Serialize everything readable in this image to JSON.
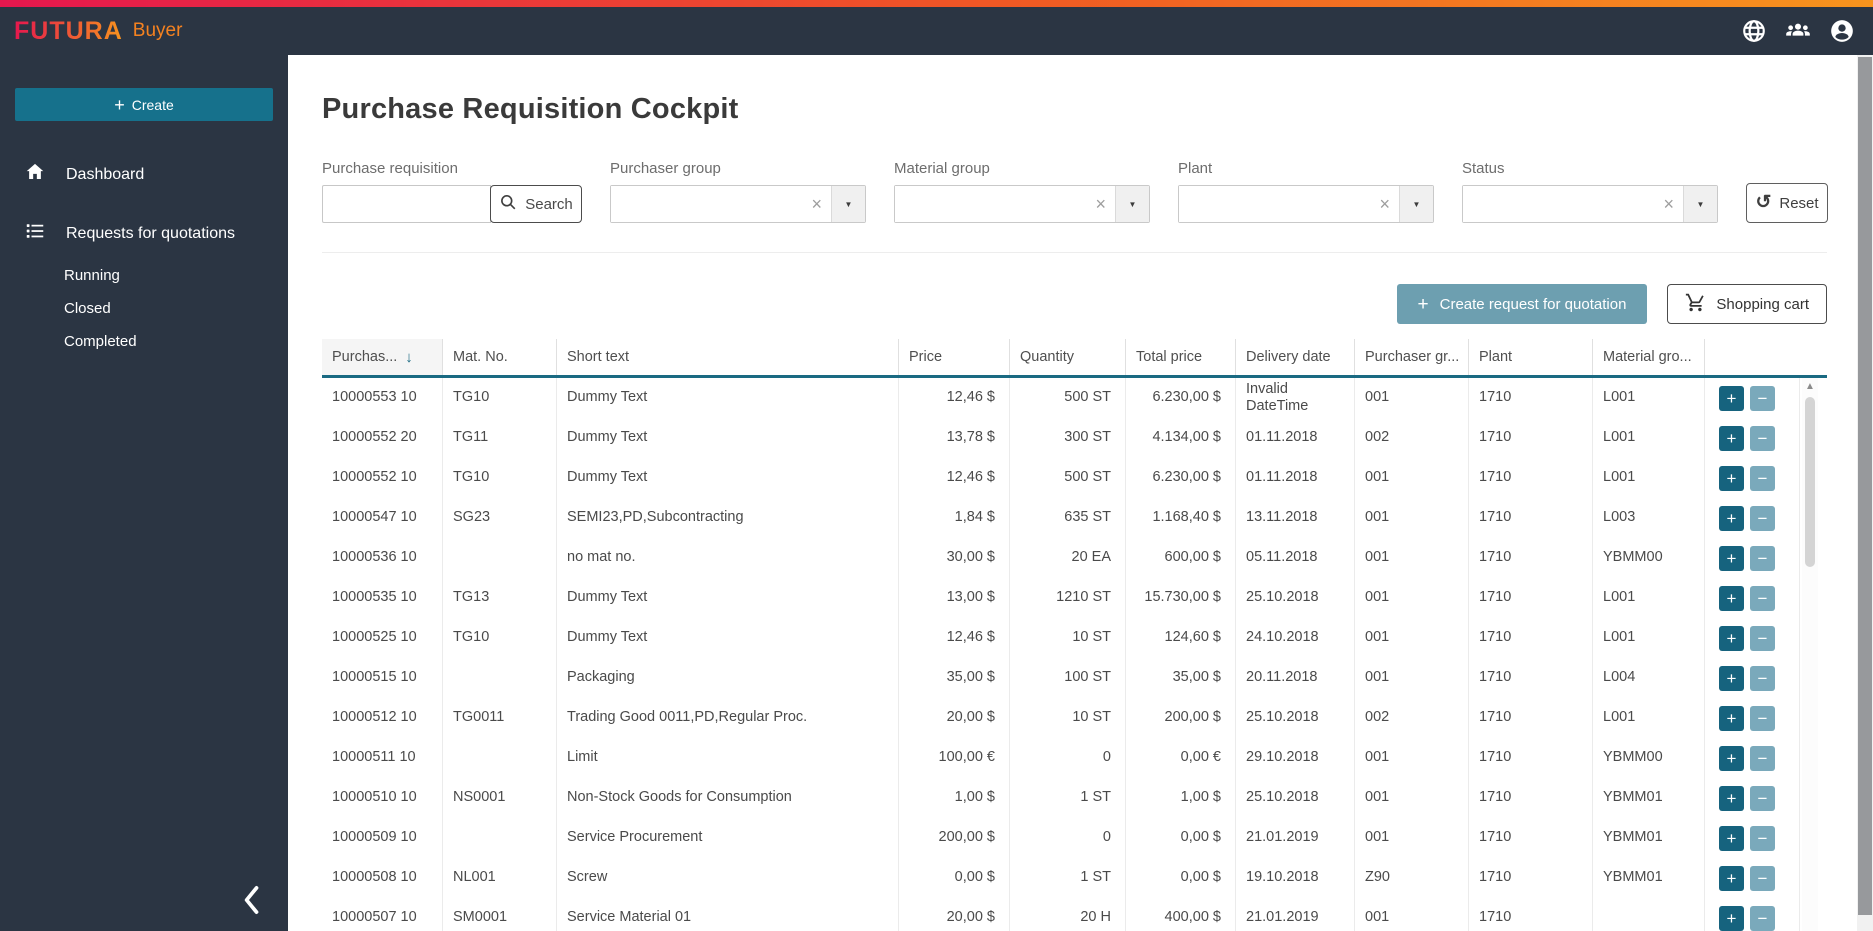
{
  "topbar": {
    "brand": "FUTURA",
    "product": "Buyer"
  },
  "sidebar": {
    "create_label": "Create",
    "dashboard_label": "Dashboard",
    "rfq_label": "Requests for quotations",
    "rfq_subitems": [
      "Running",
      "Closed",
      "Completed"
    ]
  },
  "page": {
    "title": "Purchase Requisition Cockpit"
  },
  "filters": {
    "search": {
      "label": "Purchase requisition",
      "value": "",
      "button": "Search"
    },
    "combos": [
      {
        "label": "Purchaser group",
        "value": ""
      },
      {
        "label": "Material group",
        "value": ""
      },
      {
        "label": "Plant",
        "value": ""
      },
      {
        "label": "Status",
        "value": ""
      }
    ],
    "reset_label": "Reset"
  },
  "actions": {
    "create_rfq": "Create request for quotation",
    "shopping_cart": "Shopping cart"
  },
  "glyphs": {
    "plus": "+",
    "minus": "−",
    "clear": "×",
    "caret": "▼",
    "up": "▲",
    "sort_desc": "↓",
    "reset": "↺"
  },
  "colors": {
    "brand_gradient_start": "#e5174e",
    "brand_gradient_end": "#f7941e",
    "header_bg": "#2b3543",
    "create_button": "#16718c",
    "rfq_button": "#6d9fb0",
    "plus_button": "#16637e",
    "minus_button": "#7aa9bb",
    "table_header_line": "#1a6a82"
  },
  "table": {
    "columns": [
      {
        "label": "Purchas...",
        "sorted": "desc"
      },
      {
        "label": "Mat. No."
      },
      {
        "label": "Short text"
      },
      {
        "label": "Price",
        "align": "right"
      },
      {
        "label": "Quantity",
        "align": "right"
      },
      {
        "label": "Total price",
        "align": "right"
      },
      {
        "label": "Delivery date"
      },
      {
        "label": "Purchaser gr..."
      },
      {
        "label": "Plant"
      },
      {
        "label": "Material gro..."
      }
    ],
    "rows": [
      {
        "purchase": "10000553 10",
        "mat": "TG10",
        "short_text": "Dummy Text",
        "price": "12,46 $",
        "quantity": "500 ST",
        "total": "6.230,00 $",
        "delivery": "Invalid DateTime",
        "purchaser_group": "001",
        "plant": "1710",
        "material_group": "L001"
      },
      {
        "purchase": "10000552 20",
        "mat": "TG11",
        "short_text": "Dummy Text",
        "price": "13,78 $",
        "quantity": "300 ST",
        "total": "4.134,00 $",
        "delivery": "01.11.2018",
        "purchaser_group": "002",
        "plant": "1710",
        "material_group": "L001"
      },
      {
        "purchase": "10000552 10",
        "mat": "TG10",
        "short_text": "Dummy Text",
        "price": "12,46 $",
        "quantity": "500 ST",
        "total": "6.230,00 $",
        "delivery": "01.11.2018",
        "purchaser_group": "001",
        "plant": "1710",
        "material_group": "L001"
      },
      {
        "purchase": "10000547 10",
        "mat": "SG23",
        "short_text": "SEMI23,PD,Subcontracting",
        "price": "1,84 $",
        "quantity": "635 ST",
        "total": "1.168,40 $",
        "delivery": "13.11.2018",
        "purchaser_group": "001",
        "plant": "1710",
        "material_group": "L003"
      },
      {
        "purchase": "10000536 10",
        "mat": "",
        "short_text": "no mat no.",
        "price": "30,00 $",
        "quantity": "20 EA",
        "total": "600,00 $",
        "delivery": "05.11.2018",
        "purchaser_group": "001",
        "plant": "1710",
        "material_group": "YBMM00"
      },
      {
        "purchase": "10000535 10",
        "mat": "TG13",
        "short_text": "Dummy Text",
        "price": "13,00 $",
        "quantity": "1210 ST",
        "total": "15.730,00 $",
        "delivery": "25.10.2018",
        "purchaser_group": "001",
        "plant": "1710",
        "material_group": "L001"
      },
      {
        "purchase": "10000525 10",
        "mat": "TG10",
        "short_text": "Dummy Text",
        "price": "12,46 $",
        "quantity": "10 ST",
        "total": "124,60 $",
        "delivery": "24.10.2018",
        "purchaser_group": "001",
        "plant": "1710",
        "material_group": "L001"
      },
      {
        "purchase": "10000515 10",
        "mat": "",
        "short_text": "Packaging",
        "price": "35,00 $",
        "quantity": "100 ST",
        "total": "35,00 $",
        "delivery": "20.11.2018",
        "purchaser_group": "001",
        "plant": "1710",
        "material_group": "L004"
      },
      {
        "purchase": "10000512 10",
        "mat": "TG0011",
        "short_text": "Trading Good 0011,PD,Regular Proc.",
        "price": "20,00 $",
        "quantity": "10 ST",
        "total": "200,00 $",
        "delivery": "25.10.2018",
        "purchaser_group": "002",
        "plant": "1710",
        "material_group": "L001"
      },
      {
        "purchase": "10000511 10",
        "mat": "",
        "short_text": "Limit",
        "price": "100,00 €",
        "quantity": "0",
        "total": "0,00 €",
        "delivery": "29.10.2018",
        "purchaser_group": "001",
        "plant": "1710",
        "material_group": "YBMM00"
      },
      {
        "purchase": "10000510 10",
        "mat": "NS0001",
        "short_text": "Non-Stock Goods for Consumption",
        "price": "1,00 $",
        "quantity": "1 ST",
        "total": "1,00 $",
        "delivery": "25.10.2018",
        "purchaser_group": "001",
        "plant": "1710",
        "material_group": "YBMM01"
      },
      {
        "purchase": "10000509 10",
        "mat": "",
        "short_text": "Service Procurement",
        "price": "200,00 $",
        "quantity": "0",
        "total": "0,00 $",
        "delivery": "21.01.2019",
        "purchaser_group": "001",
        "plant": "1710",
        "material_group": "YBMM01"
      },
      {
        "purchase": "10000508 10",
        "mat": "NL001",
        "short_text": "Screw",
        "price": "0,00 $",
        "quantity": "1 ST",
        "total": "0,00 $",
        "delivery": "19.10.2018",
        "purchaser_group": "Z90",
        "plant": "1710",
        "material_group": "YBMM01"
      },
      {
        "purchase": "10000507 10",
        "mat": "SM0001",
        "short_text": "Service Material 01",
        "price": "20,00 $",
        "quantity": "20 H",
        "total": "400,00 $",
        "delivery": "21.01.2019",
        "purchaser_group": "001",
        "plant": "1710",
        "material_group": ""
      }
    ]
  }
}
